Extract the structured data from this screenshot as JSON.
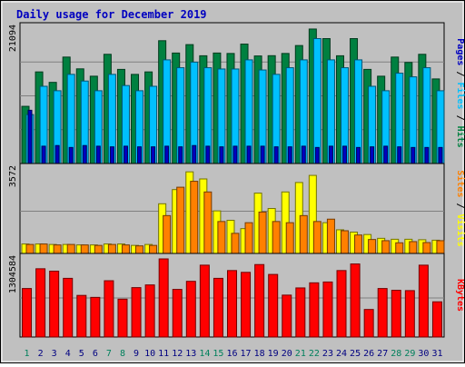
{
  "chart_data": {
    "type": "bar",
    "title": "Daily usage for December 2019",
    "categories": [
      "1",
      "2",
      "3",
      "4",
      "5",
      "6",
      "7",
      "8",
      "9",
      "10",
      "11",
      "12",
      "13",
      "14",
      "15",
      "16",
      "17",
      "18",
      "19",
      "20",
      "21",
      "22",
      "23",
      "24",
      "25",
      "26",
      "27",
      "28",
      "29",
      "30",
      "31"
    ],
    "weekend_days": [
      "1",
      "7",
      "8",
      "14",
      "15",
      "21",
      "22",
      "28",
      "29"
    ],
    "panels": [
      {
        "name": "hits-files-pages",
        "max_label": "21094",
        "ymax": 21094,
        "right_labels": [
          "Pages",
          "Files",
          "Hits"
        ],
        "series": [
          {
            "name": "Hits",
            "color": "#008040",
            "values": [
              8912,
              14276,
              12645,
              16588,
              14752,
              13606,
              17019,
              14669,
              13888,
              14276,
              19140,
              17217,
              18530,
              16791,
              17219,
              17150,
              18612,
              16763,
              16803,
              17150,
              18385,
              20958,
              19466,
              16791,
              19466,
              14668,
              13606,
              16588,
              15748,
              17019,
              13182
            ]
          },
          {
            "name": "Files",
            "color": "#00c0ff",
            "values": [
              7623,
              12034,
              11342,
              13893,
              12851,
              11342,
              13893,
              12151,
              11342,
              12034,
              16153,
              14930,
              15800,
              14930,
              14730,
              14730,
              16153,
              14576,
              13893,
              14930,
              16153,
              19466,
              16153,
              14930,
              16153,
              12034,
              11342,
              14076,
              13506,
              14930,
              11342
            ]
          },
          {
            "name": "Pages",
            "color": "#0000c0",
            "values": [
              8300,
              2700,
              2800,
              2500,
              2800,
              2700,
              2600,
              2700,
              2600,
              2600,
              2700,
              2600,
              2800,
              2700,
              2600,
              2700,
              2700,
              2700,
              2600,
              2600,
              2700,
              2500,
              2700,
              2700,
              2500,
              2600,
              2700,
              2600,
              2500,
              2500,
              2500
            ]
          }
        ]
      },
      {
        "name": "visits-sites",
        "max_label": "3572",
        "ymax": 3572,
        "right_labels": [
          "Sites",
          "Visits"
        ],
        "series": [
          {
            "name": "Visits",
            "color": "#ffff00",
            "values": [
              400,
              400,
              380,
              380,
              360,
              360,
              400,
              400,
              340,
              380,
              2100,
              2700,
              3450,
              3150,
              1800,
              1400,
              1050,
              2550,
              1900,
              2600,
              3000,
              3300,
              1300,
              1000,
              900,
              800,
              640,
              600,
              600,
              580,
              560
            ]
          },
          {
            "name": "Sites",
            "color": "#ff8000",
            "values": [
              380,
              400,
              360,
              380,
              360,
              340,
              380,
              360,
              320,
              340,
              1600,
              2800,
              3050,
              2600,
              1350,
              850,
              1300,
              1750,
              1350,
              1300,
              1600,
              1350,
              1450,
              960,
              780,
              590,
              540,
              450,
              500,
              460,
              540
            ]
          }
        ]
      },
      {
        "name": "kbytes",
        "max_label": "1304584",
        "ymax": 1304584,
        "right_labels": [
          "KBytes"
        ],
        "series": [
          {
            "name": "KBytes",
            "color": "#ff0000",
            "values": [
              810000,
              1140000,
              1100000,
              980000,
              695000,
              662000,
              940000,
              632000,
              825000,
              870000,
              1304584,
              795000,
              930000,
              1200000,
              980000,
              1110000,
              1080000,
              1210000,
              1045000,
              700000,
              820000,
              905000,
              919000,
              1110000,
              1220000,
              460000,
              810000,
              780000,
              775000,
              1200000,
              588000
            ]
          }
        ]
      }
    ]
  }
}
